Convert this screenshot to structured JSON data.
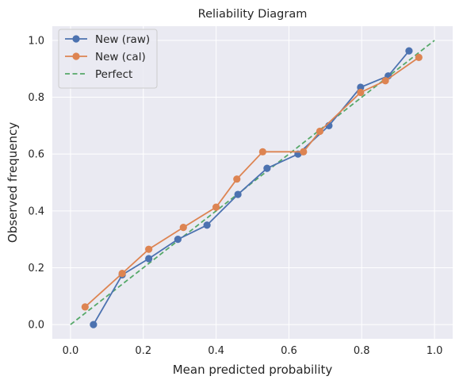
{
  "chart_data": {
    "type": "line",
    "title": "Reliability Diagram",
    "xlabel": "Mean predicted probability",
    "ylabel": "Observed frequency",
    "xlim": [
      -0.05,
      1.05
    ],
    "ylim": [
      -0.05,
      1.05
    ],
    "xticks": [
      0.0,
      0.2,
      0.4,
      0.6,
      0.8,
      1.0
    ],
    "yticks": [
      0.0,
      0.2,
      0.4,
      0.6,
      0.8,
      1.0
    ],
    "xtick_labels": [
      "0.0",
      "0.2",
      "0.4",
      "0.6",
      "0.8",
      "1.0"
    ],
    "ytick_labels": [
      "0.0",
      "0.2",
      "0.4",
      "0.6",
      "0.8",
      "1.0"
    ],
    "grid": true,
    "legend_position": "top-left",
    "series": [
      {
        "name": "New (raw)",
        "color": "#4c72b0",
        "style": "solid-marker",
        "x": [
          0.063,
          0.142,
          0.215,
          0.295,
          0.375,
          0.46,
          0.54,
          0.625,
          0.71,
          0.797,
          0.873,
          0.93
        ],
        "y": [
          0.0,
          0.175,
          0.232,
          0.3,
          0.35,
          0.458,
          0.55,
          0.6,
          0.7,
          0.835,
          0.875,
          0.963
        ]
      },
      {
        "name": "New (cal)",
        "color": "#dd8452",
        "style": "solid-marker",
        "x": [
          0.04,
          0.142,
          0.215,
          0.31,
          0.4,
          0.457,
          0.528,
          0.64,
          0.685,
          0.797,
          0.865,
          0.957
        ],
        "y": [
          0.062,
          0.18,
          0.265,
          0.342,
          0.413,
          0.512,
          0.608,
          0.608,
          0.68,
          0.817,
          0.858,
          0.94
        ]
      },
      {
        "name": "Perfect",
        "color": "#55a868",
        "style": "dashed",
        "x": [
          0.0,
          1.0
        ],
        "y": [
          0.0,
          1.0
        ]
      }
    ]
  }
}
